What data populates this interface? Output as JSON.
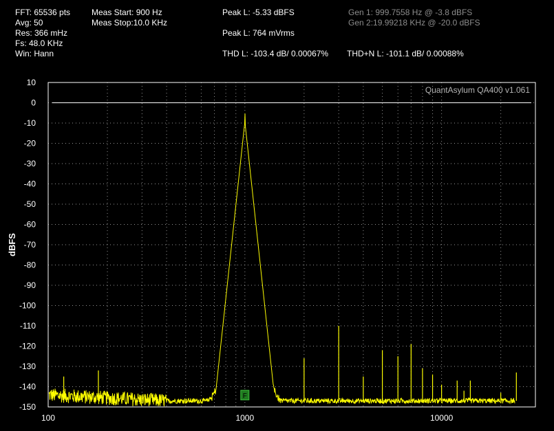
{
  "header": {
    "fft": "FFT: 65536 pts",
    "avg": "Avg: 50",
    "res": "Res: 366 mHz",
    "fs": "Fs: 48.0 KHz",
    "win": "Win: Hann",
    "meas_start": "Meas Start: 900 Hz",
    "meas_stop": "Meas Stop:10.0 KHz",
    "peak_l_dbfs": "Peak L: -5.33 dBFS",
    "peak_l_vrms": "Peak L: 764 mVrms",
    "thd_l": "THD L: -103.4 dB/ 0.00067%",
    "thdn_l": "THD+N L: -101.1 dB/ 0.00088%",
    "gen1": "Gen 1: 999.7558 Hz @ -3.8  dBFS",
    "gen2": "Gen 2:19.99218 KHz @ -20.0  dBFS"
  },
  "chart_data": {
    "type": "line",
    "watermark": "QuantAsylum QA400 v1.061",
    "ylabel": "dBFS",
    "xlabel": "",
    "x_scale": "log",
    "xlim": [
      100,
      30000
    ],
    "ylim": [
      -150,
      10
    ],
    "x_ticks": [
      "100",
      "1000",
      "10000"
    ],
    "x_tick_values": [
      100,
      1000,
      10000
    ],
    "y_ticks": [
      "10",
      "0",
      "-10",
      "-20",
      "-30",
      "-40",
      "-50",
      "-60",
      "-70",
      "-80",
      "-90",
      "-100",
      "-110",
      "-120",
      "-130",
      "-140",
      "-150"
    ],
    "y_tick_values": [
      10,
      0,
      -10,
      -20,
      -30,
      -40,
      -50,
      -60,
      -70,
      -80,
      -90,
      -100,
      -110,
      -120,
      -130,
      -140,
      -150
    ],
    "grid": true,
    "reference_line_db": 0,
    "marker_label": "F",
    "marker_freq": 1000,
    "marker_db": -144.5,
    "colors": {
      "trace": "#ffff00",
      "grid": "#c8c8c8",
      "marker": "#1f7a1f",
      "background": "#000000"
    },
    "series": [
      {
        "values_note_free": true,
        "peak_freq": 1000,
        "peak_db": -5.3,
        "floor_db": -147,
        "spurs": [
          {
            "x": 120,
            "y": -135
          },
          {
            "x": 180,
            "y": -132
          },
          {
            "x": 2000,
            "y": -126
          },
          {
            "x": 3000,
            "y": -110
          },
          {
            "x": 4000,
            "y": -135
          },
          {
            "x": 5000,
            "y": -122
          },
          {
            "x": 6000,
            "y": -125
          },
          {
            "x": 7000,
            "y": -119
          },
          {
            "x": 8000,
            "y": -131
          },
          {
            "x": 9000,
            "y": -134
          },
          {
            "x": 10000,
            "y": -139
          },
          {
            "x": 12000,
            "y": -137
          },
          {
            "x": 13000,
            "y": -142
          },
          {
            "x": 14000,
            "y": -137
          },
          {
            "x": 20000,
            "y": -143
          },
          {
            "x": 24000,
            "y": -133
          }
        ]
      }
    ]
  }
}
